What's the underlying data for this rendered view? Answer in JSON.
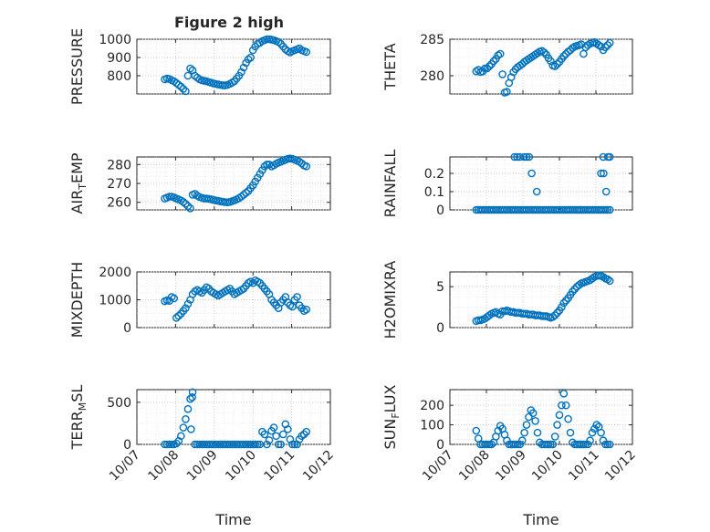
{
  "figure": {
    "title": "Figure 2 high"
  },
  "colors": {
    "marker": "#0072BD",
    "axes": "#262626",
    "background": "#ffffff"
  },
  "chart_data": [
    {
      "type": "scatter",
      "panel": "row1-left",
      "title": "Figure 2 high",
      "ylabel_parts": [
        {
          "t": "PRESSURE"
        }
      ],
      "xlabel": "",
      "xlim": [
        0,
        5
      ],
      "ylim": [
        700,
        1000
      ],
      "yticks": [
        {
          "v": 800,
          "label": "800"
        },
        {
          "v": 900,
          "label": "900"
        },
        {
          "v": 1000,
          "label": "1000"
        }
      ],
      "xticks": [],
      "grid": true,
      "minor_grid": true,
      "marker": "circle",
      "x": [
        0.72,
        0.78,
        0.84,
        0.9,
        0.96,
        1.02,
        1.08,
        1.14,
        1.2,
        1.26,
        1.32,
        1.38,
        1.44,
        1.5,
        1.56,
        1.62,
        1.68,
        1.74,
        1.8,
        1.86,
        1.92,
        1.98,
        2.04,
        2.1,
        2.16,
        2.22,
        2.28,
        2.34,
        2.4,
        2.46,
        2.52,
        2.58,
        2.64,
        2.7,
        2.76,
        2.82,
        2.88,
        2.94,
        3.0,
        3.06,
        3.12,
        3.18,
        3.24,
        3.3,
        3.36,
        3.42,
        3.48,
        3.54,
        3.6,
        3.66,
        3.72,
        3.78,
        3.84,
        3.9,
        3.96,
        4.02,
        4.08,
        4.14,
        4.2,
        4.26,
        4.32,
        4.38
      ],
      "y": [
        780,
        785,
        782,
        775,
        770,
        760,
        750,
        740,
        728,
        715,
        800,
        840,
        830,
        800,
        790,
        780,
        775,
        772,
        770,
        765,
        762,
        758,
        755,
        752,
        750,
        748,
        747,
        750,
        755,
        762,
        770,
        785,
        800,
        820,
        845,
        870,
        890,
        900,
        940,
        960,
        975,
        980,
        990,
        995,
        1000,
        1000,
        998,
        995,
        990,
        985,
        975,
        960,
        945,
        935,
        928,
        935,
        940,
        945,
        950,
        940,
        935,
        930
      ]
    },
    {
      "type": "scatter",
      "panel": "row1-right",
      "ylabel_parts": [
        {
          "t": "THETA"
        }
      ],
      "xlabel": "",
      "xlim": [
        0,
        5
      ],
      "ylim": [
        277.5,
        285
      ],
      "yticks": [
        {
          "v": 280,
          "label": "280"
        },
        {
          "v": 285,
          "label": "285"
        }
      ],
      "xticks": [],
      "grid": true,
      "minor_grid": true,
      "marker": "circle",
      "x": [
        0.72,
        0.78,
        0.84,
        0.9,
        0.96,
        1.02,
        1.08,
        1.14,
        1.2,
        1.26,
        1.32,
        1.38,
        1.44,
        1.5,
        1.56,
        1.62,
        1.68,
        1.74,
        1.8,
        1.86,
        1.92,
        1.98,
        2.04,
        2.1,
        2.16,
        2.22,
        2.28,
        2.34,
        2.4,
        2.46,
        2.52,
        2.58,
        2.64,
        2.7,
        2.76,
        2.82,
        2.88,
        2.94,
        3.0,
        3.06,
        3.12,
        3.18,
        3.24,
        3.3,
        3.36,
        3.42,
        3.48,
        3.54,
        3.6,
        3.66,
        3.72,
        3.78,
        3.84,
        3.9,
        3.96,
        4.02,
        4.08,
        4.14,
        4.2,
        4.26,
        4.32,
        4.38
      ],
      "y": [
        280.6,
        280.8,
        280.5,
        280.6,
        281.0,
        281.0,
        281.3,
        281.6,
        282.0,
        282.3,
        282.8,
        283.0,
        280.2,
        277.7,
        277.8,
        279.0,
        279.8,
        280.5,
        280.9,
        281.2,
        281.4,
        281.6,
        281.9,
        282.1,
        282.3,
        282.5,
        282.7,
        282.9,
        283.1,
        283.3,
        283.4,
        283.2,
        282.9,
        282.4,
        282.0,
        281.4,
        281.3,
        281.6,
        281.9,
        282.3,
        282.7,
        283.0,
        283.3,
        283.5,
        283.8,
        284.0,
        284.1,
        284.2,
        284.3,
        283.0,
        283.9,
        284.2,
        284.4,
        284.5,
        284.6,
        284.4,
        284.2,
        284.0,
        283.5,
        283.9,
        284.2,
        284.5
      ]
    },
    {
      "type": "scatter",
      "panel": "row2-left",
      "ylabel_parts": [
        {
          "t": "AIR"
        },
        {
          "t": "T",
          "sub": true
        },
        {
          "t": "EMP"
        }
      ],
      "xlabel": "",
      "xlim": [
        0,
        5
      ],
      "ylim": [
        256,
        284
      ],
      "yticks": [
        {
          "v": 260,
          "label": "260"
        },
        {
          "v": 270,
          "label": "270"
        },
        {
          "v": 280,
          "label": "280"
        }
      ],
      "xticks": [],
      "grid": true,
      "minor_grid": true,
      "marker": "circle",
      "x": [
        0.72,
        0.78,
        0.84,
        0.9,
        0.96,
        1.02,
        1.08,
        1.14,
        1.2,
        1.26,
        1.32,
        1.38,
        1.44,
        1.5,
        1.56,
        1.62,
        1.68,
        1.74,
        1.8,
        1.86,
        1.92,
        1.98,
        2.04,
        2.1,
        2.16,
        2.22,
        2.28,
        2.34,
        2.4,
        2.46,
        2.52,
        2.58,
        2.64,
        2.7,
        2.76,
        2.82,
        2.88,
        2.94,
        3.0,
        3.06,
        3.12,
        3.18,
        3.24,
        3.3,
        3.36,
        3.42,
        3.48,
        3.54,
        3.6,
        3.66,
        3.72,
        3.78,
        3.84,
        3.9,
        3.96,
        4.02,
        4.08,
        4.14,
        4.2,
        4.26,
        4.32,
        4.38
      ],
      "y": [
        262,
        262.5,
        263,
        263,
        262.6,
        262,
        261.5,
        261,
        260.2,
        259.2,
        258,
        256.8,
        264,
        264.5,
        263.5,
        262.8,
        262.4,
        262,
        262,
        261.8,
        261.6,
        261.3,
        261,
        260.8,
        260.5,
        260.3,
        260.1,
        260,
        260.2,
        260.6,
        261,
        261.6,
        262.2,
        263,
        264,
        265,
        266,
        267.5,
        269,
        271,
        273,
        275,
        277,
        279,
        280,
        280,
        279,
        279.6,
        280.4,
        281,
        281.5,
        282,
        282.5,
        283,
        283.2,
        283,
        282.5,
        282,
        281.5,
        280.6,
        279.5,
        279
      ]
    },
    {
      "type": "scatter",
      "panel": "row2-right",
      "ylabel_parts": [
        {
          "t": "RAINFALL"
        }
      ],
      "xlabel": "",
      "xlim": [
        0,
        5
      ],
      "ylim": [
        0,
        0.29
      ],
      "yticks": [
        {
          "v": 0,
          "label": "0"
        },
        {
          "v": 0.1,
          "label": "0.1"
        },
        {
          "v": 0.2,
          "label": "0.2"
        }
      ],
      "xticks": [],
      "grid": true,
      "minor_grid": true,
      "marker": "circle",
      "x": [
        0.72,
        0.78,
        0.84,
        0.9,
        0.96,
        1.02,
        1.08,
        1.14,
        1.2,
        1.26,
        1.32,
        1.38,
        1.44,
        1.5,
        1.56,
        1.62,
        1.68,
        1.74,
        1.8,
        1.86,
        1.92,
        1.98,
        2.04,
        2.1,
        2.16,
        2.22,
        2.28,
        2.34,
        2.4,
        2.46,
        2.52,
        2.58,
        2.64,
        2.7,
        2.76,
        2.82,
        2.88,
        2.94,
        3.0,
        3.06,
        3.12,
        3.18,
        3.24,
        3.3,
        3.36,
        3.42,
        3.48,
        3.54,
        3.6,
        3.66,
        3.72,
        3.78,
        3.84,
        3.9,
        3.96,
        4.02,
        4.08,
        4.14,
        4.2,
        4.26,
        4.32,
        4.38,
        1.77,
        1.84,
        1.91,
        2.03,
        2.1,
        2.17,
        2.24,
        2.38,
        4.14,
        4.21,
        4.2,
        4.28,
        4.33,
        4.38
      ],
      "y": [
        0,
        0,
        0,
        0,
        0,
        0,
        0,
        0,
        0,
        0,
        0,
        0,
        0,
        0,
        0,
        0,
        0,
        0,
        0,
        0,
        0,
        0,
        0,
        0,
        0,
        0,
        0,
        0,
        0,
        0,
        0,
        0,
        0,
        0,
        0,
        0,
        0,
        0,
        0,
        0,
        0,
        0,
        0,
        0,
        0,
        0,
        0,
        0,
        0,
        0,
        0,
        0,
        0,
        0,
        0,
        0,
        0,
        0,
        0,
        0,
        0,
        0,
        0.29,
        0.29,
        0.29,
        0.29,
        0.29,
        0.29,
        0.2,
        0.1,
        0.2,
        0.2,
        0.29,
        0.1,
        0.29,
        0.29
      ]
    },
    {
      "type": "scatter",
      "panel": "row3-left",
      "ylabel_parts": [
        {
          "t": "MIXDEPTH"
        }
      ],
      "xlabel": "",
      "xlim": [
        0,
        5
      ],
      "ylim": [
        0,
        2000
      ],
      "yticks": [
        {
          "v": 0,
          "label": "0"
        },
        {
          "v": 1000,
          "label": "1000"
        },
        {
          "v": 2000,
          "label": "2000"
        }
      ],
      "xticks": [],
      "grid": true,
      "minor_grid": true,
      "marker": "circle",
      "x": [
        0.72,
        0.78,
        0.84,
        0.9,
        0.96,
        1.02,
        1.08,
        1.14,
        1.2,
        1.26,
        1.32,
        1.38,
        1.44,
        1.5,
        1.56,
        1.62,
        1.68,
        1.74,
        1.8,
        1.86,
        1.92,
        1.98,
        2.04,
        2.1,
        2.16,
        2.22,
        2.28,
        2.34,
        2.4,
        2.46,
        2.52,
        2.58,
        2.64,
        2.7,
        2.76,
        2.82,
        2.88,
        2.94,
        3.0,
        3.06,
        3.12,
        3.18,
        3.24,
        3.3,
        3.36,
        3.42,
        3.48,
        3.54,
        3.6,
        3.66,
        3.72,
        3.78,
        3.84,
        3.9,
        3.96,
        4.02,
        4.08,
        4.14,
        4.2,
        4.26,
        4.32,
        4.38
      ],
      "y": [
        950,
        980,
        960,
        1100,
        1050,
        350,
        420,
        500,
        600,
        700,
        850,
        1000,
        1200,
        1300,
        1350,
        1300,
        1250,
        1350,
        1450,
        1400,
        1300,
        1250,
        1200,
        1150,
        1200,
        1250,
        1300,
        1350,
        1400,
        1300,
        1200,
        1250,
        1300,
        1350,
        1400,
        1500,
        1600,
        1650,
        1600,
        1700,
        1650,
        1600,
        1500,
        1400,
        1300,
        1200,
        1000,
        900,
        800,
        700,
        900,
        1000,
        1100,
        900,
        800,
        750,
        1000,
        1100,
        800,
        700,
        600,
        650
      ]
    },
    {
      "type": "scatter",
      "panel": "row3-right",
      "ylabel_parts": [
        {
          "t": "H2OMIXRA"
        }
      ],
      "xlabel": "",
      "xlim": [
        0,
        5
      ],
      "ylim": [
        0,
        6.8
      ],
      "yticks": [
        {
          "v": 0,
          "label": "0"
        },
        {
          "v": 5,
          "label": "5"
        }
      ],
      "xticks": [],
      "grid": true,
      "minor_grid": true,
      "marker": "circle",
      "x": [
        0.72,
        0.78,
        0.84,
        0.9,
        0.96,
        1.02,
        1.08,
        1.14,
        1.2,
        1.26,
        1.32,
        1.38,
        1.44,
        1.5,
        1.56,
        1.62,
        1.68,
        1.74,
        1.8,
        1.86,
        1.92,
        1.98,
        2.04,
        2.1,
        2.16,
        2.22,
        2.28,
        2.34,
        2.4,
        2.46,
        2.52,
        2.58,
        2.64,
        2.7,
        2.76,
        2.82,
        2.88,
        2.94,
        3.0,
        3.06,
        3.12,
        3.18,
        3.24,
        3.3,
        3.36,
        3.42,
        3.48,
        3.54,
        3.6,
        3.66,
        3.72,
        3.78,
        3.84,
        3.9,
        3.96,
        4.02,
        4.08,
        4.14,
        4.2,
        4.26,
        4.32,
        4.38
      ],
      "y": [
        0.8,
        0.9,
        0.9,
        1.0,
        1.1,
        1.3,
        1.5,
        1.7,
        1.8,
        1.9,
        1.7,
        1.6,
        2.0,
        2.0,
        2.1,
        2.0,
        1.9,
        1.9,
        1.8,
        1.8,
        1.8,
        1.7,
        1.7,
        1.7,
        1.6,
        1.6,
        1.6,
        1.5,
        1.5,
        1.5,
        1.4,
        1.4,
        1.4,
        1.3,
        1.2,
        1.3,
        1.5,
        1.8,
        2.1,
        2.5,
        3.0,
        3.3,
        3.6,
        4.0,
        4.4,
        4.7,
        5.0,
        5.2,
        5.4,
        5.5,
        5.6,
        5.7,
        5.8,
        6.0,
        6.2,
        6.3,
        6.4,
        6.3,
        6.2,
        6.0,
        5.9,
        5.7
      ]
    },
    {
      "type": "scatter",
      "panel": "row4-left",
      "ylabel_parts": [
        {
          "t": "TERR"
        },
        {
          "t": "M",
          "sub": true
        },
        {
          "t": "SL"
        }
      ],
      "xlabel": "Time",
      "xlim": [
        0,
        5
      ],
      "ylim": [
        0,
        650
      ],
      "yticks": [
        {
          "v": 0,
          "label": "0"
        },
        {
          "v": 500,
          "label": "500"
        }
      ],
      "xticks": [
        {
          "v": 0,
          "label": "10/07"
        },
        {
          "v": 1,
          "label": "10/08"
        },
        {
          "v": 2,
          "label": "10/09"
        },
        {
          "v": 3,
          "label": "10/10"
        },
        {
          "v": 4,
          "label": "10/11"
        },
        {
          "v": 5,
          "label": "10/12"
        }
      ],
      "grid": true,
      "minor_grid": true,
      "marker": "circle",
      "x": [
        0.72,
        0.78,
        0.84,
        0.9,
        0.96,
        1.02,
        1.08,
        1.14,
        1.2,
        1.26,
        1.32,
        1.38,
        1.44,
        1.5,
        1.56,
        1.62,
        1.68,
        1.74,
        1.8,
        1.86,
        1.92,
        1.98,
        2.04,
        2.1,
        2.16,
        2.22,
        2.28,
        2.34,
        2.4,
        2.46,
        2.52,
        2.58,
        2.64,
        2.7,
        2.76,
        2.82,
        2.88,
        2.94,
        3.0,
        3.06,
        3.12,
        3.18,
        3.24,
        3.3,
        3.36,
        3.42,
        3.48,
        3.54,
        3.6,
        3.66,
        3.72,
        3.78,
        3.84,
        3.9,
        3.96,
        4.02,
        4.08,
        4.14,
        4.2,
        4.26,
        4.32,
        4.38,
        1.43,
        1.4
      ],
      "y": [
        0,
        0,
        0,
        0,
        0,
        10,
        40,
        100,
        200,
        300,
        420,
        540,
        620,
        0,
        0,
        0,
        0,
        0,
        0,
        0,
        0,
        0,
        0,
        0,
        0,
        0,
        0,
        0,
        0,
        0,
        0,
        0,
        0,
        0,
        0,
        0,
        0,
        0,
        0,
        0,
        0,
        0,
        150,
        120,
        0,
        50,
        160,
        200,
        100,
        0,
        0,
        120,
        240,
        180,
        60,
        0,
        0,
        0,
        60,
        100,
        120,
        150,
        560,
        180
      ]
    },
    {
      "type": "scatter",
      "panel": "row4-right",
      "ylabel_parts": [
        {
          "t": "SUN"
        },
        {
          "t": "F",
          "sub": true
        },
        {
          "t": "LUX"
        }
      ],
      "xlabel": "Time",
      "xlim": [
        0,
        5
      ],
      "ylim": [
        0,
        280
      ],
      "yticks": [
        {
          "v": 0,
          "label": "0"
        },
        {
          "v": 100,
          "label": "100"
        },
        {
          "v": 200,
          "label": "200"
        }
      ],
      "xticks": [
        {
          "v": 0,
          "label": "10/07"
        },
        {
          "v": 1,
          "label": "10/08"
        },
        {
          "v": 2,
          "label": "10/09"
        },
        {
          "v": 3,
          "label": "10/10"
        },
        {
          "v": 4,
          "label": "10/11"
        },
        {
          "v": 5,
          "label": "10/12"
        }
      ],
      "grid": true,
      "minor_grid": true,
      "marker": "circle",
      "x": [
        0.72,
        0.78,
        0.84,
        0.9,
        0.96,
        1.02,
        1.08,
        1.14,
        1.2,
        1.26,
        1.32,
        1.38,
        1.44,
        1.5,
        1.56,
        1.62,
        1.68,
        1.74,
        1.8,
        1.86,
        1.92,
        1.98,
        2.04,
        2.1,
        2.16,
        2.22,
        2.28,
        2.34,
        2.4,
        2.46,
        2.52,
        2.58,
        2.64,
        2.7,
        2.76,
        2.82,
        2.88,
        2.94,
        3.0,
        3.06,
        3.12,
        3.18,
        3.24,
        3.3,
        3.36,
        3.42,
        3.48,
        3.54,
        3.6,
        3.66,
        3.72,
        3.78,
        3.84,
        3.9,
        3.96,
        4.02,
        4.08,
        4.14,
        4.2,
        4.26,
        4.32,
        4.38
      ],
      "y": [
        70,
        30,
        0,
        0,
        0,
        0,
        0,
        0,
        10,
        40,
        70,
        95,
        80,
        50,
        20,
        0,
        0,
        0,
        0,
        0,
        0,
        20,
        60,
        100,
        140,
        175,
        160,
        120,
        60,
        10,
        0,
        0,
        0,
        0,
        0,
        0,
        40,
        100,
        150,
        200,
        260,
        200,
        130,
        60,
        10,
        0,
        0,
        0,
        0,
        0,
        0,
        0,
        20,
        60,
        80,
        100,
        90,
        60,
        20,
        0,
        0,
        0
      ]
    }
  ]
}
